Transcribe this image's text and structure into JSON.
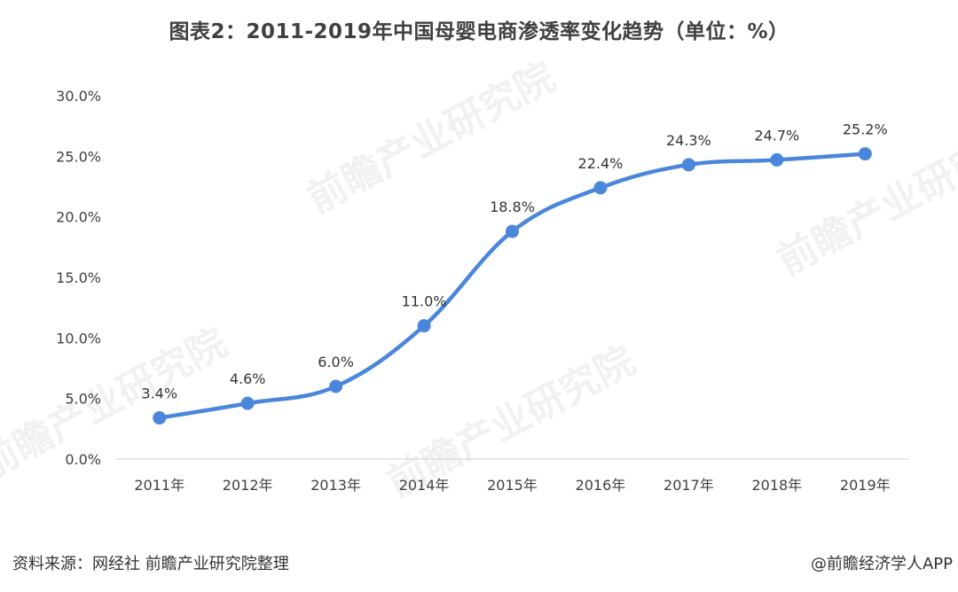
{
  "title": "图表2：2011-2019年中国母婴电商渗透率变化趋势（单位：%）",
  "chart_data": {
    "type": "line",
    "title": "图表2：2011-2019年中国母婴电商渗透率变化趋势（单位：%）",
    "categories": [
      "2011年",
      "2012年",
      "2013年",
      "2014年",
      "2015年",
      "2016年",
      "2017年",
      "2018年",
      "2019年"
    ],
    "series": [
      {
        "values": [
          3.4,
          4.6,
          6.0,
          11.0,
          18.8,
          22.4,
          24.3,
          24.7,
          25.2
        ],
        "data_labels": [
          "3.4%",
          "4.6%",
          "6.0%",
          "11.0%",
          "18.8%",
          "22.4%",
          "24.3%",
          "24.7%",
          "25.2%"
        ],
        "color": "#4A86DA"
      }
    ],
    "y_ticks": [
      "0.0%",
      "5.0%",
      "10.0%",
      "15.0%",
      "20.0%",
      "25.0%",
      "30.0%"
    ],
    "ylim": [
      0,
      30
    ],
    "xlabel": "",
    "ylabel": "",
    "grid": false,
    "smooth": true
  },
  "footer": {
    "source": "资料来源：网经社 前瞻产业研究院整理",
    "credit": "@前瞻经济学人APP"
  },
  "watermark": "前瞻产业研究院"
}
